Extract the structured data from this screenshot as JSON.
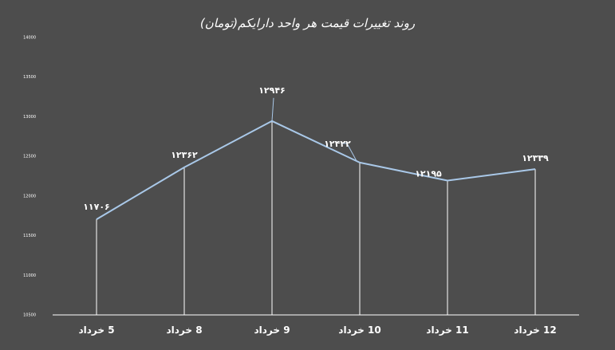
{
  "chart_data": {
    "type": "line",
    "title": "روند تغییرات قیمت هر واحد دارایکم(تومان)",
    "xlabel": "",
    "ylabel": "",
    "categories": [
      "5 خرداد",
      "8 خرداد",
      "9 خرداد",
      "10 خرداد",
      "11 خرداد",
      "12 خرداد"
    ],
    "series": [
      {
        "values": [
          11706,
          12362,
          12946,
          12422,
          12195,
          12339
        ]
      }
    ],
    "data_labels": [
      "۱۱۷۰۶",
      "۱۲۳۶۲",
      "۱۲۹۴۶",
      "۱۲۴۲۲",
      "۱۲۱۹۵",
      "۱۲۳۳۹"
    ],
    "yticks": [
      10500,
      11000,
      11500,
      12000,
      12500,
      13000,
      13500,
      14000
    ],
    "ytick_labels": [
      "10500",
      "11000",
      "11500",
      "12000",
      "12500",
      "13000",
      "13500",
      "14000"
    ],
    "ylim": [
      10500,
      14000
    ],
    "grid": false,
    "legend": "none",
    "drop_lines": true,
    "colors": {
      "line": "#a9c8e8",
      "drop_line": "#ffffff",
      "axis": "#ffffff",
      "background": "#4d4d4d"
    }
  }
}
